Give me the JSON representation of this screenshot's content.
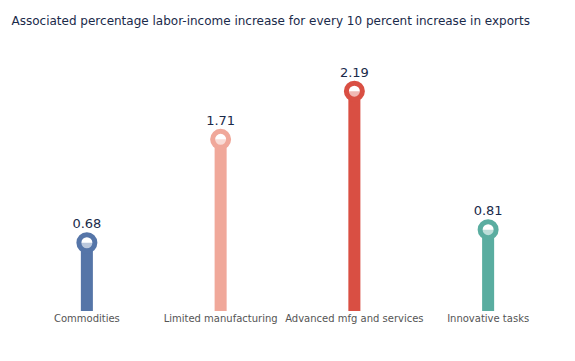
{
  "chart_data": {
    "type": "bar",
    "title": "Associated percentage labor-income increase for every 10 percent increase in exports",
    "categories": [
      "Commodities",
      "Limited manufacturing",
      "Advanced mfg and services",
      "Innovative tasks"
    ],
    "values": [
      0.68,
      1.71,
      2.19,
      0.81
    ],
    "colors": [
      "#5575a8",
      "#f0a89a",
      "#d94f43",
      "#5aada0"
    ],
    "ylim": [
      0,
      2.6
    ],
    "data_labels": true,
    "tick_labels": "x",
    "grid": false
  }
}
